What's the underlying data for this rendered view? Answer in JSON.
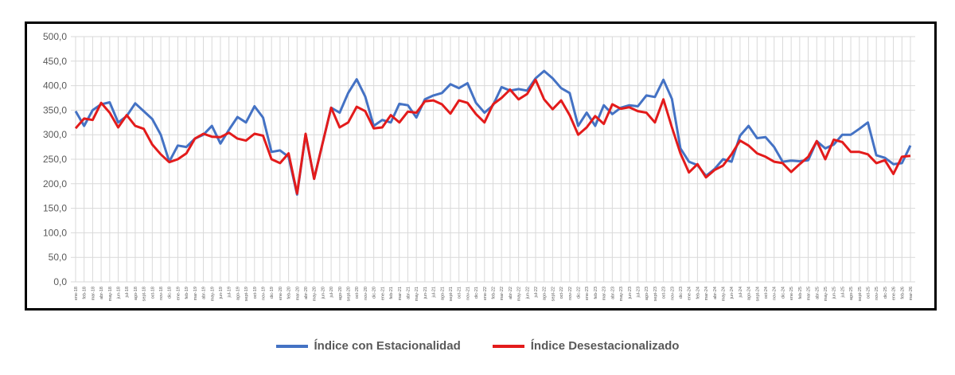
{
  "chart_data": {
    "type": "line",
    "title": "",
    "xlabel": "",
    "ylabel": "",
    "ylim": [
      0,
      500
    ],
    "yticks": [
      "0,0",
      "50,0",
      "100,0",
      "150,0",
      "200,0",
      "250,0",
      "300,0",
      "350,0",
      "400,0",
      "450,0",
      "500,0"
    ],
    "grid": true,
    "legend_position": "bottom",
    "x_start": {
      "year": 18,
      "month_index": 0
    },
    "month_abbr": [
      "ene",
      "feb",
      "mar",
      "abr",
      "may",
      "jun",
      "jul",
      "ago",
      "sept",
      "oct",
      "nov",
      "dic"
    ],
    "series": [
      {
        "name": "Índice con Estacionalidad",
        "color": "#4472C4",
        "values": [
          348,
          318,
          350,
          362,
          366,
          325,
          338,
          364,
          348,
          332,
          300,
          245,
          278,
          275,
          292,
          300,
          318,
          282,
          310,
          336,
          325,
          358,
          335,
          265,
          268,
          255,
          178,
          300,
          210,
          283,
          355,
          345,
          385,
          413,
          378,
          318,
          330,
          325,
          363,
          360,
          335,
          372,
          380,
          385,
          403,
          395,
          405,
          365,
          345,
          360,
          397,
          390,
          393,
          390,
          415,
          430,
          415,
          395,
          385,
          318,
          345,
          318,
          360,
          342,
          355,
          360,
          358,
          380,
          377,
          412,
          373,
          272,
          245,
          238,
          216,
          230,
          250,
          245,
          298,
          318,
          293,
          295,
          275,
          245,
          247,
          246,
          248,
          287,
          272,
          280,
          300,
          300,
          312,
          325,
          258,
          253,
          240,
          242,
          278
        ]
      },
      {
        "name": "Índice Desestacionalizado",
        "color": "#E31B1B",
        "values": [
          313,
          333,
          330,
          365,
          345,
          315,
          340,
          318,
          312,
          280,
          260,
          244,
          250,
          262,
          292,
          302,
          296,
          295,
          304,
          292,
          288,
          302,
          298,
          250,
          242,
          262,
          180,
          302,
          210,
          283,
          355,
          315,
          325,
          357,
          348,
          313,
          315,
          340,
          325,
          347,
          345,
          368,
          370,
          362,
          343,
          370,
          365,
          342,
          325,
          362,
          375,
          392,
          372,
          383,
          412,
          372,
          352,
          370,
          340,
          300,
          315,
          338,
          322,
          362,
          353,
          356,
          348,
          345,
          325,
          372,
          315,
          262,
          223,
          240,
          213,
          228,
          237,
          260,
          288,
          278,
          262,
          255,
          245,
          242,
          224,
          240,
          255,
          287,
          250,
          290,
          285,
          265,
          265,
          260,
          242,
          248,
          220,
          255,
          257
        ]
      }
    ]
  }
}
